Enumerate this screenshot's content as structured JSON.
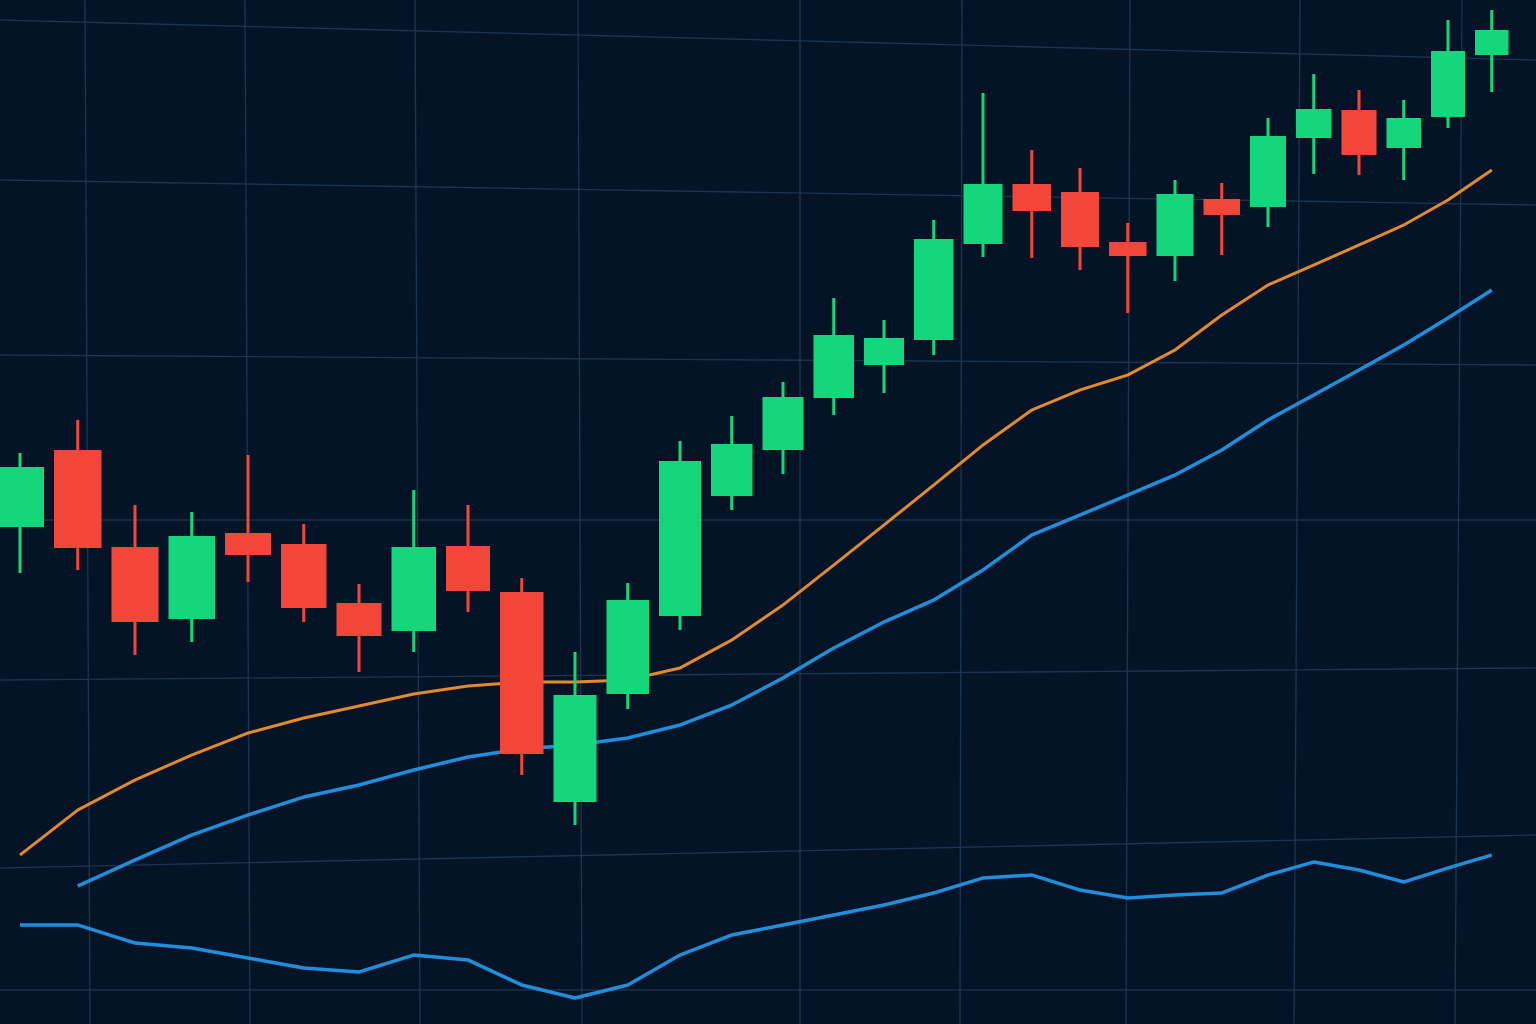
{
  "chart_data": {
    "type": "candlestick",
    "categories": [
      null,
      null,
      null,
      null,
      null,
      null,
      null,
      null,
      null,
      null,
      null,
      null,
      null,
      null,
      null,
      null,
      null,
      null,
      null,
      null,
      null,
      null,
      null,
      null,
      null,
      null,
      null,
      null,
      null,
      null
    ],
    "open": [
      497,
      574,
      477,
      405,
      491,
      480,
      421,
      393,
      478,
      432,
      222,
      330,
      408,
      528,
      574,
      626,
      659,
      684,
      780,
      840,
      832,
      782,
      768,
      825,
      817,
      886,
      914,
      876,
      907,
      969
    ],
    "high": [
      571,
      604,
      519,
      512,
      569,
      500,
      440,
      534,
      519,
      446,
      372,
      441,
      583,
      608,
      642,
      726,
      704,
      804,
      931,
      874,
      856,
      801,
      844,
      841,
      906,
      950,
      934,
      924,
      1004,
      1014
    ],
    "low": [
      451,
      454,
      369,
      382,
      442,
      402,
      352,
      372,
      412,
      249,
      199,
      315,
      394,
      514,
      550,
      609,
      631,
      669,
      767,
      766,
      754,
      711,
      743,
      769,
      797,
      850,
      849,
      844,
      896,
      932
    ],
    "close": [
      557,
      476,
      402,
      488,
      469,
      416,
      388,
      477,
      433,
      270,
      329,
      424,
      563,
      580,
      627,
      689,
      686,
      785,
      840,
      813,
      777,
      768,
      830,
      809,
      888,
      915,
      869,
      906,
      973,
      994
    ],
    "up_color": "#14d77c",
    "down_color": "#f2463a",
    "series": [
      {
        "color": "#e38a2a",
        "values": [
          169,
          214,
          244,
          269,
          291,
          306,
          318,
          330,
          338,
          342,
          342,
          344,
          356,
          384,
          419,
          459,
          499,
          539,
          579,
          614,
          634,
          649,
          674,
          709,
          739,
          759,
          779,
          799,
          824,
          854
        ]
      },
      {
        "color": "#1f8fdc",
        "values": [
          null,
          138,
          164,
          189,
          209,
          227,
          239,
          254,
          267,
          275,
          279,
          286,
          299,
          319,
          346,
          376,
          402,
          424,
          454,
          489,
          509,
          529,
          549,
          574,
          604,
          629,
          654,
          679,
          706,
          734
        ]
      },
      {
        "color": "#1f8fdc",
        "values": [
          99,
          99,
          81,
          76,
          66,
          56,
          52,
          69,
          64,
          39,
          26,
          39,
          69,
          89,
          99,
          109,
          119,
          131,
          146,
          149,
          134,
          126,
          129,
          131,
          149,
          162,
          154,
          142,
          156,
          169
        ]
      }
    ],
    "ylim": [
      0,
      1024
    ]
  }
}
